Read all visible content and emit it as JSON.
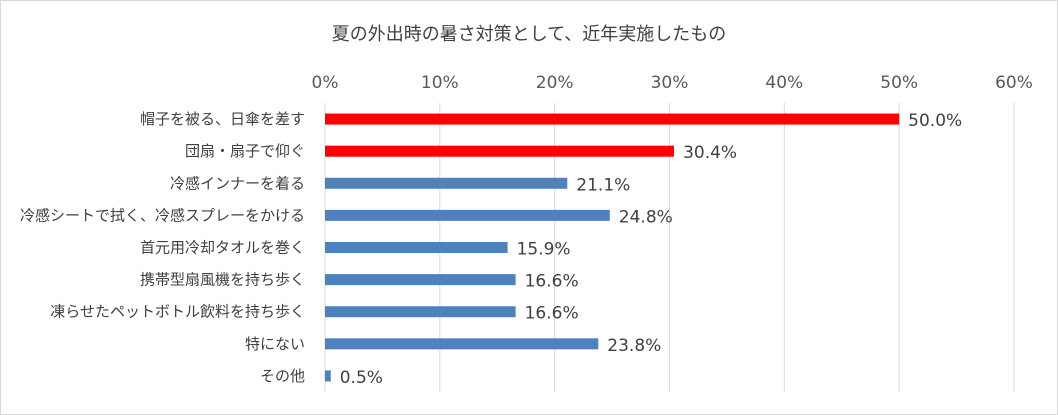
{
  "chart_data": {
    "type": "bar",
    "orientation": "horizontal",
    "title": "夏の外出時の暑さ対策として、近年実施したもの",
    "xlim": [
      0,
      60
    ],
    "x_ticks": [
      "0%",
      "10%",
      "20%",
      "30%",
      "40%",
      "50%",
      "60%"
    ],
    "x_axis_position": "top",
    "grid": true,
    "categories": [
      "帽子を被る、日傘を差す",
      "団扇・扇子で仰ぐ",
      "冷感インナーを着る",
      "冷感シートで拭く、冷感スプレーをかける",
      "首元用冷却タオルを巻く",
      "携帯型扇風機を持ち歩く",
      "凍らせたペットボトル飲料を持ち歩く",
      "特にない",
      "その他"
    ],
    "values": [
      50.0,
      30.4,
      21.1,
      24.8,
      15.9,
      16.6,
      16.6,
      23.8,
      0.5
    ],
    "data_labels": [
      "50.0%",
      "30.4%",
      "21.1%",
      "24.8%",
      "15.9%",
      "16.6%",
      "16.6%",
      "23.8%",
      "0.5%"
    ],
    "colors": [
      "#ff0000",
      "#ff0000",
      "#4f81bd",
      "#4f81bd",
      "#4f81bd",
      "#4f81bd",
      "#4f81bd",
      "#4f81bd",
      "#4f81bd"
    ]
  }
}
